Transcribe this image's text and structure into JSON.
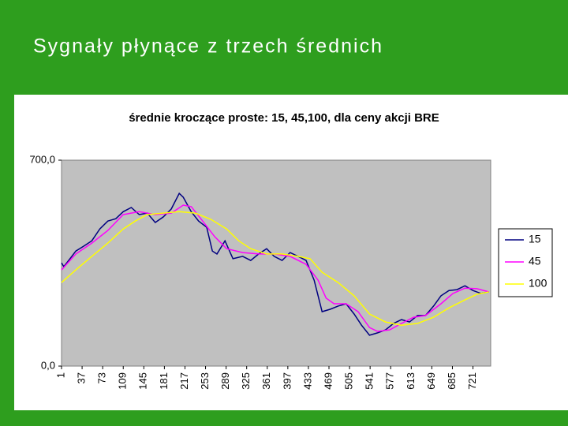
{
  "slide_title": "Sygnały płynące z trzech średnich",
  "chart_data": {
    "type": "line",
    "title": "średnie kroczące proste: 15, 45,100,  dla ceny akcji BRE",
    "xlim": [
      1,
      752
    ],
    "xticks": [
      1,
      37,
      73,
      109,
      145,
      181,
      217,
      253,
      289,
      325,
      361,
      397,
      433,
      469,
      505,
      541,
      577,
      613,
      649,
      685,
      721
    ],
    "ylim": [
      0,
      700
    ],
    "yticks": [
      {
        "value": 0,
        "label": "0,0"
      },
      {
        "value": 700,
        "label": "700,0"
      }
    ],
    "legend": "right",
    "series": [
      {
        "name": "15",
        "color": "#000080",
        "x": [
          1,
          5,
          19,
          26,
          40,
          54,
          68,
          82,
          96,
          109,
          123,
          137,
          151,
          165,
          179,
          193,
          207,
          214,
          228,
          241,
          255,
          265,
          273,
          287,
          301,
          318,
          332,
          346,
          360,
          373,
          387,
          401,
          415,
          429,
          443,
          457,
          471,
          485,
          499,
          513,
          526,
          540,
          554,
          568,
          582,
          596,
          610,
          624,
          638,
          652,
          665,
          679,
          693,
          707,
          721,
          735,
          749
        ],
        "values": [
          351,
          338,
          373,
          391,
          408,
          426,
          466,
          493,
          501,
          525,
          539,
          515,
          520,
          488,
          507,
          534,
          587,
          574,
          525,
          493,
          472,
          391,
          381,
          426,
          365,
          373,
          359,
          381,
          399,
          373,
          359,
          386,
          373,
          359,
          292,
          185,
          193,
          204,
          212,
          177,
          139,
          105,
          113,
          123,
          145,
          158,
          150,
          172,
          172,
          204,
          239,
          257,
          260,
          273,
          257,
          247,
          252
        ]
      },
      {
        "name": "45",
        "color": "#ff00ff",
        "x": [
          1,
          26,
          54,
          82,
          109,
          137,
          165,
          193,
          214,
          228,
          248,
          269,
          290,
          318,
          346,
          373,
          401,
          429,
          450,
          464,
          478,
          499,
          520,
          540,
          554,
          575,
          596,
          617,
          638,
          665,
          686,
          707,
          728,
          749
        ],
        "values": [
          327,
          381,
          418,
          461,
          515,
          525,
          515,
          520,
          547,
          542,
          493,
          440,
          399,
          386,
          381,
          381,
          373,
          346,
          292,
          231,
          212,
          212,
          185,
          131,
          118,
          123,
          145,
          166,
          172,
          212,
          247,
          265,
          263,
          252
        ]
      },
      {
        "name": "100",
        "color": "#ffff00",
        "x": [
          1,
          26,
          54,
          82,
          109,
          130,
          151,
          179,
          207,
          235,
          262,
          290,
          311,
          332,
          360,
          387,
          415,
          436,
          457,
          485,
          513,
          540,
          568,
          596,
          624,
          652,
          679,
          707,
          728,
          749
        ],
        "values": [
          284,
          327,
          373,
          418,
          466,
          493,
          515,
          520,
          525,
          520,
          499,
          466,
          426,
          399,
          381,
          381,
          373,
          365,
          319,
          284,
          239,
          177,
          150,
          139,
          145,
          166,
          198,
          225,
          244,
          252
        ]
      }
    ]
  }
}
